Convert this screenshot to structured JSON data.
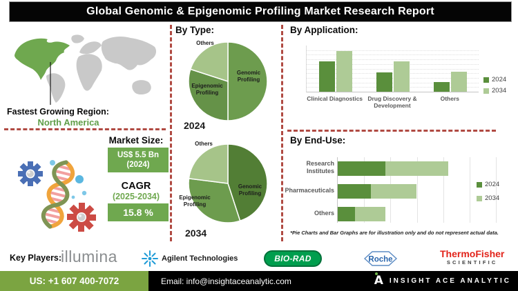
{
  "title": "Global Genomic & Epigenomic Profiling Market Research Report",
  "region": {
    "label": "Fastest Growing Region:",
    "value": "North America"
  },
  "market": {
    "size_label": "Market Size:",
    "size_value": "US$ 5.5 Bn",
    "size_year": "(2024)",
    "cagr_label": "CAGR",
    "cagr_period": "(2025-2034)",
    "cagr_value": "15.8 %"
  },
  "colors": {
    "accent_green": "#6fa84f",
    "dash_red": "#b04a42",
    "series2024": "#5a8f3c",
    "series2034": "#aecb96"
  },
  "chart_data": [
    {
      "type": "pie",
      "title": "By Type:",
      "year": "2024",
      "labels": [
        "Genomic Profiling",
        "Epigenomic Profiling",
        "Others"
      ],
      "values": [
        50,
        30,
        20
      ],
      "colors": [
        "#6d9c4e",
        "#659248",
        "#a6c489"
      ],
      "note": "illustrative proportions, clockwise from top"
    },
    {
      "type": "pie",
      "title": "By Type:",
      "year": "2034",
      "labels": [
        "Genomic Profiling",
        "Epigenomic Profiling",
        "Others"
      ],
      "values": [
        45,
        32,
        23
      ],
      "colors": [
        "#527e35",
        "#6d9c4e",
        "#a6c489"
      ],
      "note": "illustrative proportions, clockwise from top"
    },
    {
      "type": "bar",
      "title": "By Application:",
      "categories": [
        "Clinical Diagnostics",
        "Drug Discovery & Development",
        "Others"
      ],
      "series": [
        {
          "name": "2024",
          "values": [
            65,
            42,
            21
          ]
        },
        {
          "name": "2034",
          "values": [
            88,
            65,
            44
          ]
        }
      ],
      "ylabel": "",
      "ylim": [
        0,
        100
      ],
      "grid": true,
      "legend_position": "right",
      "note": "no numeric axis shown; values are relative bar heights (%)"
    },
    {
      "type": "stacked-bar-horizontal",
      "title": "By End-Use:",
      "categories": [
        "Research Institutes",
        "Pharmaceuticals",
        "Others"
      ],
      "series": [
        {
          "name": "2024",
          "values": [
            30,
            21,
            11
          ]
        },
        {
          "name": "2034",
          "values": [
            40,
            29,
            19
          ]
        }
      ],
      "xlim": [
        0,
        100
      ],
      "grid": true,
      "legend_position": "right",
      "note": "no numeric axis shown; values are relative segment lengths (%)"
    }
  ],
  "footnote": "*Pie Charts and Bar Graphs are for illustration only and do not represent actual data.",
  "key_players": {
    "label": "Key Players:",
    "illumina": "illumina",
    "agilent": "Agilent Technologies",
    "biorad": "BIO-RAD",
    "roche": "Roche",
    "thermo_line1": "ThermoFisher",
    "thermo_line2": "SCIENTIFIC"
  },
  "footer": {
    "phone": "US: +1 607 400-7072",
    "email": "Email: info@insightaceanalytic.com",
    "brand": "INSIGHT ACE ANALYTIC",
    "brand_glyph": "A"
  }
}
